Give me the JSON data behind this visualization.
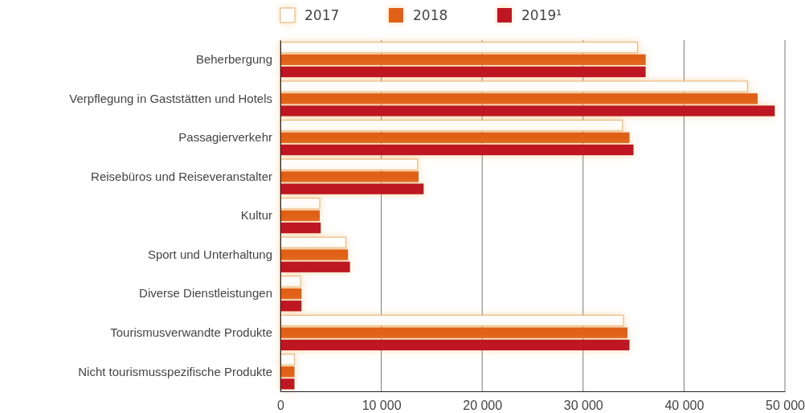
{
  "chart_data": {
    "type": "bar",
    "orientation": "horizontal",
    "categories": [
      "Beherbergung",
      "Verpflegung in Gaststätten und Hotels",
      "Passagierverkehr",
      "Reisebüros und Reiseveranstalter",
      "Kultur",
      "Sport und Unterhaltung",
      "Diverse Dienstleistungen",
      "Tourismusverwandte Produkte",
      "Nicht tourismusspezifische Produkte"
    ],
    "series": [
      {
        "name": "2017",
        "color": "#ffffff",
        "values": [
          35400,
          46300,
          33900,
          13600,
          3900,
          6500,
          2000,
          34000,
          1400
        ]
      },
      {
        "name": "2018",
        "color": "#e06018",
        "values": [
          36200,
          47300,
          34600,
          13700,
          3900,
          6700,
          2100,
          34400,
          1400
        ]
      },
      {
        "name": "2019¹",
        "color": "#be1420",
        "values": [
          36200,
          49000,
          35000,
          14200,
          4000,
          6900,
          2100,
          34600,
          1400
        ]
      }
    ],
    "xlim": [
      0,
      50000
    ],
    "xticks": [
      0,
      {
        "value": 10000,
        "label": "10 000"
      },
      {
        "value": 20000,
        "label": "20 000"
      },
      {
        "value": 30000,
        "label": "30 000"
      },
      {
        "value": 40000,
        "label": "40 000"
      },
      {
        "value": 50000,
        "label": "50 000"
      }
    ],
    "grid": "x",
    "legend": "top"
  }
}
